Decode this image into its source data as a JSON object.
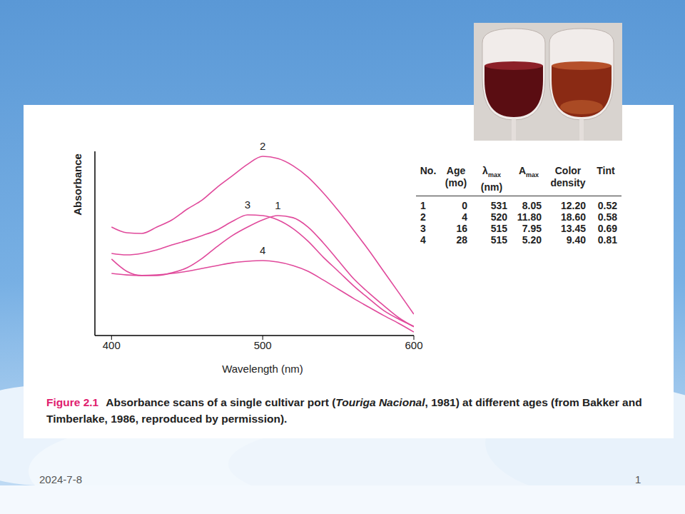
{
  "chart_data": {
    "type": "line",
    "x_label": "Wavelength (nm)",
    "y_label": "Absorbance",
    "x": [
      400,
      410,
      420,
      430,
      440,
      450,
      460,
      470,
      480,
      490,
      500,
      510,
      520,
      530,
      540,
      550,
      560,
      570,
      580,
      590,
      600
    ],
    "series": [
      {
        "name": "1",
        "color": "#e0499b",
        "values": [
          41.5,
          34.9,
          32.6,
          32.6,
          34.1,
          36.8,
          41.9,
          48.4,
          54.3,
          58.9,
          62.8,
          65.1,
          64.0,
          58.9,
          50.4,
          40.7,
          31.0,
          23.3,
          16.3,
          9.7,
          4.7
        ]
      },
      {
        "name": "2",
        "color": "#e0499b",
        "values": [
          58.9,
          55.8,
          55.4,
          58.9,
          62.8,
          68.6,
          73.6,
          80.6,
          86.8,
          93.0,
          97.3,
          96.1,
          92.2,
          86.0,
          77.5,
          67.8,
          57.4,
          46.5,
          34.9,
          23.3,
          11.6
        ]
      },
      {
        "name": "3",
        "color": "#e0499b",
        "values": [
          44.6,
          43.8,
          44.6,
          46.5,
          49.2,
          51.6,
          54.3,
          57.4,
          62.0,
          65.5,
          65.1,
          62.8,
          58.1,
          51.2,
          42.6,
          34.9,
          27.1,
          20.2,
          13.6,
          8.9,
          5.0
        ]
      },
      {
        "name": "4",
        "color": "#e0499b",
        "values": [
          33.7,
          32.9,
          32.6,
          32.9,
          33.7,
          34.9,
          36.4,
          38.0,
          39.5,
          40.3,
          40.7,
          39.9,
          38.0,
          34.9,
          30.2,
          25.2,
          20.2,
          15.5,
          10.9,
          6.6,
          1.9
        ]
      }
    ],
    "xlim": [
      389,
      600
    ],
    "xticks": [
      400,
      500,
      600
    ],
    "ylim": [
      0,
      100
    ],
    "tick_labels": "x",
    "grid": false,
    "line_style": "solid",
    "marker": "none"
  },
  "table": {
    "columns": [
      {
        "text": "No."
      },
      {
        "text": "Age",
        "line2": "(mo)"
      },
      {
        "text": "λ",
        "sub": "max",
        "line2": "(nm)"
      },
      {
        "text": "A",
        "sub": "max"
      },
      {
        "text": "Color",
        "line2": "density"
      },
      {
        "text": "Tint"
      }
    ],
    "rows": [
      [
        "1",
        "0",
        "531",
        "8.05",
        "12.20",
        "0.52"
      ],
      [
        "2",
        "4",
        "520",
        "11.80",
        "18.60",
        "0.58"
      ],
      [
        "3",
        "16",
        "515",
        "7.95",
        "13.45",
        "0.69"
      ],
      [
        "4",
        "28",
        "515",
        "5.20",
        "9.40",
        "0.81"
      ]
    ]
  },
  "caption": {
    "label": "Figure 2.1",
    "parts": [
      {
        "text": "Absorbance scans of a single cultivar port ("
      },
      {
        "text": "Touriga Nacional",
        "italic": true
      },
      {
        "text": ", 1981) at different ages (from Bakker and Timberlake, 1986, reproduced by permission)."
      }
    ]
  },
  "footer": {
    "date": "2024-7-8",
    "page": "1"
  }
}
